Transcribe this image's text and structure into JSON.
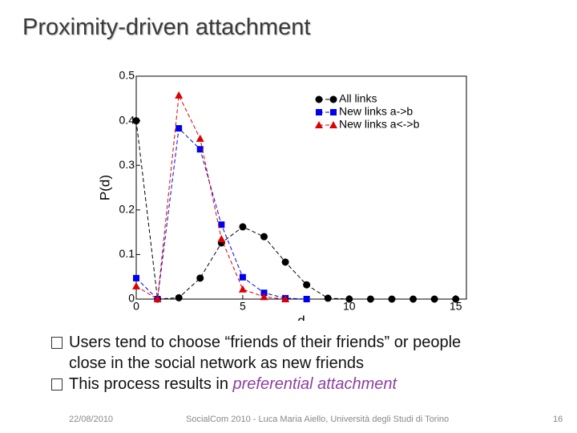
{
  "title": "Proximity-driven attachment",
  "chart_data": {
    "type": "line",
    "x_label": "d",
    "y_label": "P(d)",
    "x": [
      0,
      1,
      2,
      3,
      4,
      5,
      6,
      7,
      8,
      9,
      10,
      11,
      12,
      13,
      14,
      15
    ],
    "series": [
      {
        "name": "All links",
        "color": "#000000",
        "marker": "circle",
        "values": [
          0.4,
          0,
          0.003,
          0.047,
          0.126,
          0.162,
          0.14,
          0.083,
          0.032,
          0.002,
          0,
          0,
          0,
          0,
          0,
          0
        ]
      },
      {
        "name": "New links a->b",
        "color": "#0000ee",
        "marker": "square",
        "values": [
          0.047,
          0,
          0.383,
          0.336,
          0.167,
          0.049,
          0.014,
          0.002,
          0,
          null,
          null,
          null,
          null,
          null,
          null,
          null
        ]
      },
      {
        "name": "New links a<->b",
        "color": "#dd0000",
        "marker": "triangle",
        "values": [
          0.029,
          0,
          0.457,
          0.36,
          0.135,
          0.022,
          0.005,
          0,
          null,
          null,
          null,
          null,
          null,
          null,
          null,
          null
        ]
      }
    ],
    "xlim": [
      0,
      15.5
    ],
    "xticks": [
      0,
      5,
      10,
      15
    ],
    "ylim": [
      0,
      0.5
    ],
    "yticks": [
      0,
      0.1,
      0.2,
      0.3,
      0.4,
      0.5
    ],
    "line_style": "dashed",
    "legend": "upper right"
  },
  "bullets": [
    {
      "text": "Users tend to choose “friends of their friends” or people close in the social network as new friends"
    },
    {
      "text": "This process results in ",
      "emphasis": "preferential attachment"
    }
  ],
  "footer": {
    "date": "22/08/2010",
    "center": "SocialCom 2010 - Luca Maria Aiello, Università degli Studi di Torino",
    "page": "16"
  }
}
